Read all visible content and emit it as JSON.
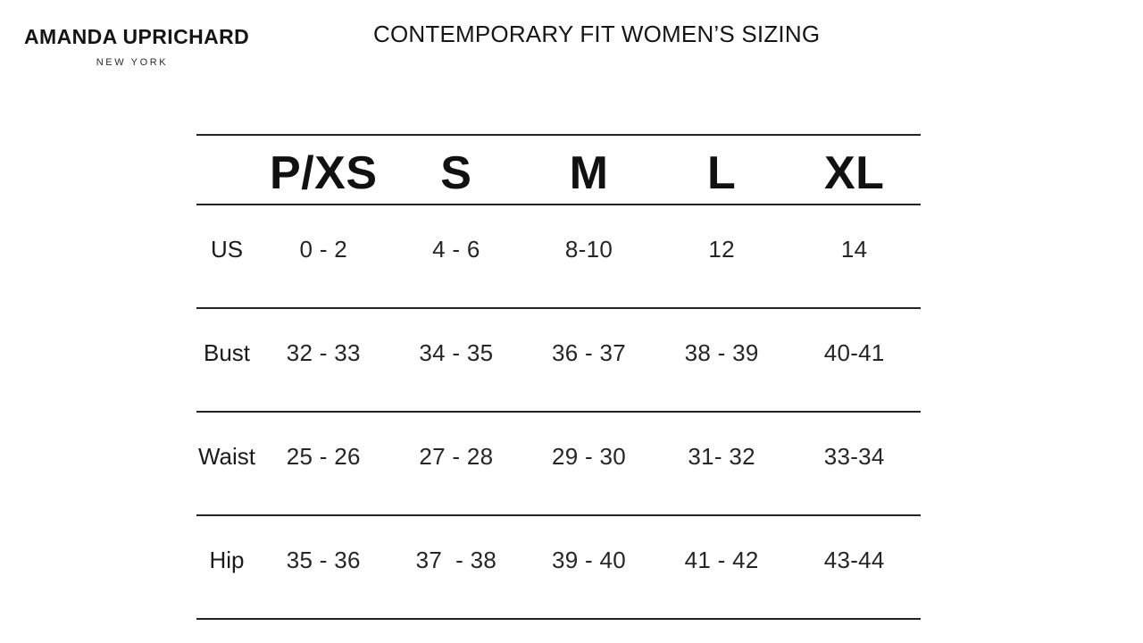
{
  "brand": {
    "name": "AMANDA UPRICHARD",
    "city": "NEW YORK"
  },
  "title": "CONTEMPORARY FIT WOMEN’S SIZING",
  "chart_data": {
    "type": "table",
    "title": "CONTEMPORARY FIT WOMEN’S SIZING",
    "columns": [
      "P/XS",
      "S",
      "M",
      "L",
      "XL"
    ],
    "corner_label": "",
    "rows": [
      {
        "label": "US",
        "values": [
          "0 - 2",
          "4 - 6",
          "8-10",
          "12",
          "14"
        ]
      },
      {
        "label": "Bust",
        "values": [
          "32 - 33",
          "34 - 35",
          "36 - 37",
          "38 - 39",
          "40-41"
        ]
      },
      {
        "label": "Waist",
        "values": [
          "25 - 26",
          "27 - 28",
          "29 - 30",
          "31- 32",
          "33-34"
        ]
      },
      {
        "label": "Hip",
        "values": [
          "35 - 36",
          "37  - 38",
          "39 - 40",
          "41 - 42",
          "43-44"
        ]
      }
    ]
  },
  "colors": {
    "text": "#1e1e1e",
    "rule": "#222222",
    "background": "#ffffff"
  }
}
